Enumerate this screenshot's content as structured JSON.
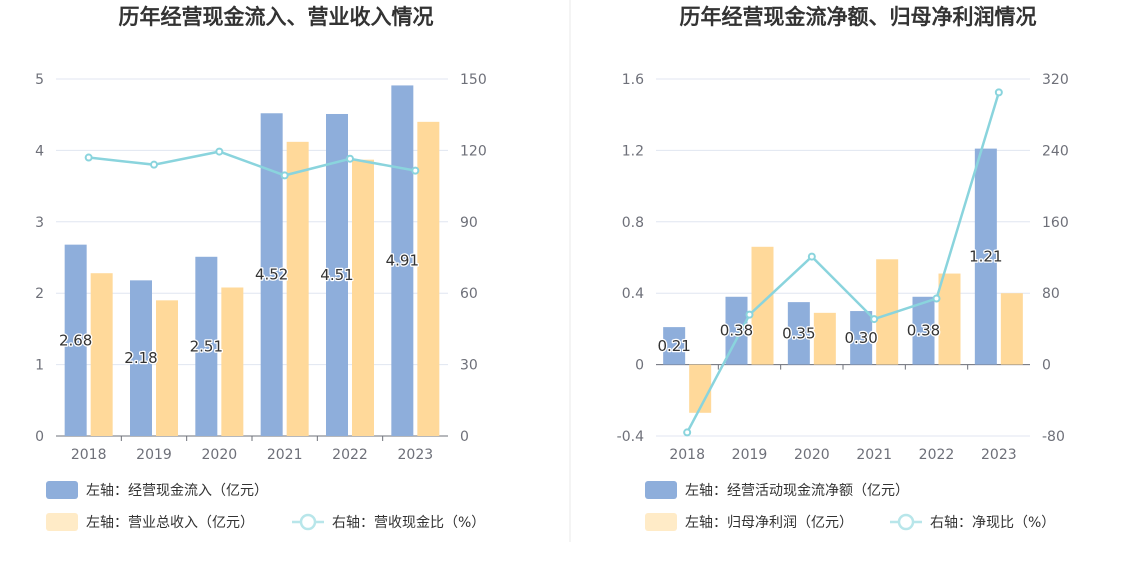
{
  "chart_data": [
    {
      "type": "bar",
      "title": "历年经营现金流入、营业收入情况",
      "categories": [
        "2018",
        "2019",
        "2020",
        "2021",
        "2022",
        "2023"
      ],
      "left_axis": {
        "min": 0,
        "max": 5,
        "ticks": [
          "0",
          "1",
          "2",
          "3",
          "4",
          "5"
        ]
      },
      "right_axis": {
        "min": 0,
        "max": 150,
        "ticks": [
          "0",
          "30",
          "60",
          "90",
          "120",
          "150"
        ]
      },
      "grid": true,
      "legend_position": "bottom",
      "series": [
        {
          "name": "左轴：经营现金流入（亿元）",
          "type": "bar",
          "axis": "left",
          "color": "#8eaedb",
          "values": [
            2.68,
            2.18,
            2.51,
            4.52,
            4.51,
            4.91
          ],
          "labels": [
            "2.68",
            "2.18",
            "2.51",
            "4.52",
            "4.51",
            "4.91"
          ]
        },
        {
          "name": "左轴：营业总收入（亿元）",
          "type": "bar",
          "axis": "left",
          "color": "#ffd99a",
          "values": [
            2.28,
            1.9,
            2.08,
            4.12,
            3.87,
            4.4
          ]
        },
        {
          "name": "右轴：营收现金比（%）",
          "type": "line",
          "axis": "right",
          "color": "#8ad4dd",
          "values": [
            117,
            114,
            119.5,
            109.5,
            116.5,
            111.5
          ]
        }
      ]
    },
    {
      "type": "bar",
      "title": "历年经营现金流净额、归母净利润情况",
      "categories": [
        "2018",
        "2019",
        "2020",
        "2021",
        "2022",
        "2023"
      ],
      "left_axis": {
        "min": -0.4,
        "max": 1.6,
        "ticks": [
          "-0.4",
          "0",
          "0.4",
          "0.8",
          "1.2",
          "1.6"
        ]
      },
      "right_axis": {
        "min": -80,
        "max": 320,
        "ticks": [
          "-80",
          "0",
          "80",
          "160",
          "240",
          "320"
        ]
      },
      "grid": true,
      "legend_position": "bottom",
      "series": [
        {
          "name": "左轴：经营活动现金流净额（亿元）",
          "type": "bar",
          "axis": "left",
          "color": "#8eaedb",
          "values": [
            0.21,
            0.38,
            0.35,
            0.3,
            0.38,
            1.21
          ],
          "labels": [
            "0.21",
            "0.38",
            "0.35",
            "0.30",
            "0.38",
            "1.21"
          ]
        },
        {
          "name": "左轴：归母净利润（亿元）",
          "type": "bar",
          "axis": "left",
          "color": "#ffd99a",
          "values": [
            -0.27,
            0.66,
            0.29,
            0.59,
            0.51,
            0.4
          ]
        },
        {
          "name": "右轴：净现比（%）",
          "type": "line",
          "axis": "right",
          "color": "#8ad4dd",
          "values": [
            -76,
            56,
            121,
            51,
            74,
            305
          ]
        }
      ]
    }
  ]
}
